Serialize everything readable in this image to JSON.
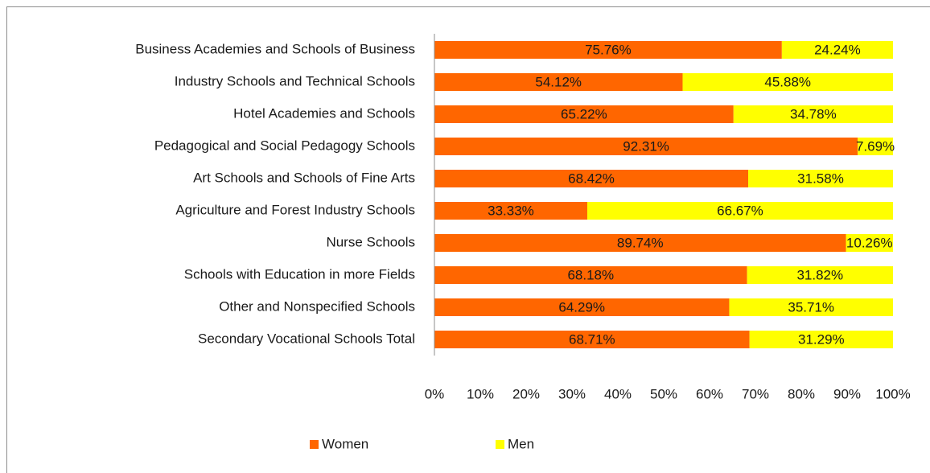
{
  "chart_data": {
    "type": "stacked_bar_horizontal",
    "categories": [
      "Business Academies and Schools of Business",
      "Industry Schools and Technical Schools",
      "Hotel Academies and Schools",
      "Pedagogical and Social Pedagogy Schools",
      "Art Schools and Schools of Fine Arts",
      "Agriculture and Forest Industry Schools",
      "Nurse Schools",
      "Schools with Education in more Fields",
      "Other and Nonspecified Schools",
      "Secondary Vocational Schools Total"
    ],
    "series": [
      {
        "name": "Women",
        "color": "#ff6600",
        "values": [
          75.76,
          54.12,
          65.22,
          92.31,
          68.42,
          33.33,
          89.74,
          68.18,
          64.29,
          68.71
        ],
        "value_labels": [
          "75.76%",
          "54.12%",
          "65.22%",
          "92.31%",
          "68.42%",
          "33.33%",
          "89.74%",
          "68.18%",
          "64.29%",
          "68.71%"
        ]
      },
      {
        "name": "Men",
        "color": "#ffff00",
        "values": [
          24.24,
          45.88,
          34.78,
          7.69,
          31.58,
          66.67,
          10.26,
          31.82,
          35.71,
          31.29
        ],
        "value_labels": [
          "24.24%",
          "45.88%",
          "34.78%",
          "7.69%",
          "31.58%",
          "66.67%",
          "10.26%",
          "31.82%",
          "35.71%",
          "31.29%"
        ]
      }
    ],
    "xlim": [
      0,
      100
    ],
    "xticks": [
      {
        "value": 0,
        "label": "0%"
      },
      {
        "value": 10,
        "label": "10%"
      },
      {
        "value": 20,
        "label": "20%"
      },
      {
        "value": 30,
        "label": "30%"
      },
      {
        "value": 40,
        "label": "40%"
      },
      {
        "value": 50,
        "label": "50%"
      },
      {
        "value": 60,
        "label": "60%"
      },
      {
        "value": 70,
        "label": "70%"
      },
      {
        "value": 80,
        "label": "80%"
      },
      {
        "value": 90,
        "label": "90%"
      },
      {
        "value": 100,
        "label": "100%"
      }
    ],
    "legend": "bottom"
  }
}
